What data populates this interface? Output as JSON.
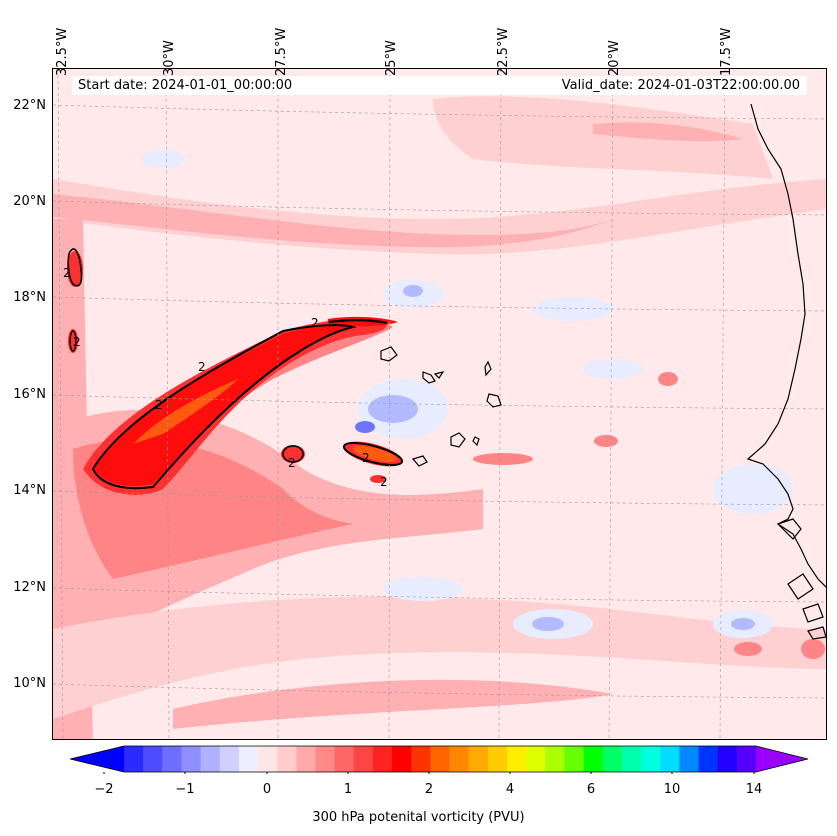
{
  "map": {
    "start_date": "Start date: 2024-01-01_00:00:00",
    "valid_date": "Valid_date: 2024-01-03T22:00:00.00",
    "lon_labels": [
      "32.5°W",
      "30°W",
      "27.5°W",
      "25°W",
      "22.5°W",
      "20°W",
      "17.5°W"
    ],
    "lat_labels": [
      "22°N",
      "20°N",
      "18°N",
      "16°N",
      "14°N",
      "12°N",
      "10°N"
    ],
    "contour_label": "2",
    "colors": {
      "background": "#ffe9ea",
      "light_pink": "#ffd0d2",
      "pink": "#ffb0b2",
      "salmon": "#ff8486",
      "red": "#ff3030",
      "bright_red": "#ff0c0c",
      "orange": "#ff5a10",
      "light_blue": "#e8ecff",
      "blue": "#b4baff",
      "dark_blue": "#6e74ff"
    }
  },
  "colorbar": {
    "label": "300 hPa potenital vorticity (PVU)",
    "ticks": [
      "−2",
      "−1",
      "0",
      "1",
      "2",
      "4",
      "6",
      "10",
      "14"
    ],
    "colors": [
      "#0000ff",
      "#2b2bff",
      "#4d4dff",
      "#6e6eff",
      "#8f8fff",
      "#b0b0ff",
      "#d0d0ff",
      "#eeeeff",
      "#ffe6e6",
      "#ffcccc",
      "#ffaaaa",
      "#ff8888",
      "#ff6666",
      "#ff4444",
      "#ff2222",
      "#ff0000",
      "#ff3300",
      "#ff6600",
      "#ff8800",
      "#ffaa00",
      "#ffcc00",
      "#ffee00",
      "#ddff00",
      "#aaff00",
      "#66ff00",
      "#00ff00",
      "#00ff66",
      "#00ffaa",
      "#00ffdd",
      "#00ddff",
      "#0088ff",
      "#0033ff",
      "#2200ff",
      "#5500ff",
      "#9900ff"
    ]
  }
}
